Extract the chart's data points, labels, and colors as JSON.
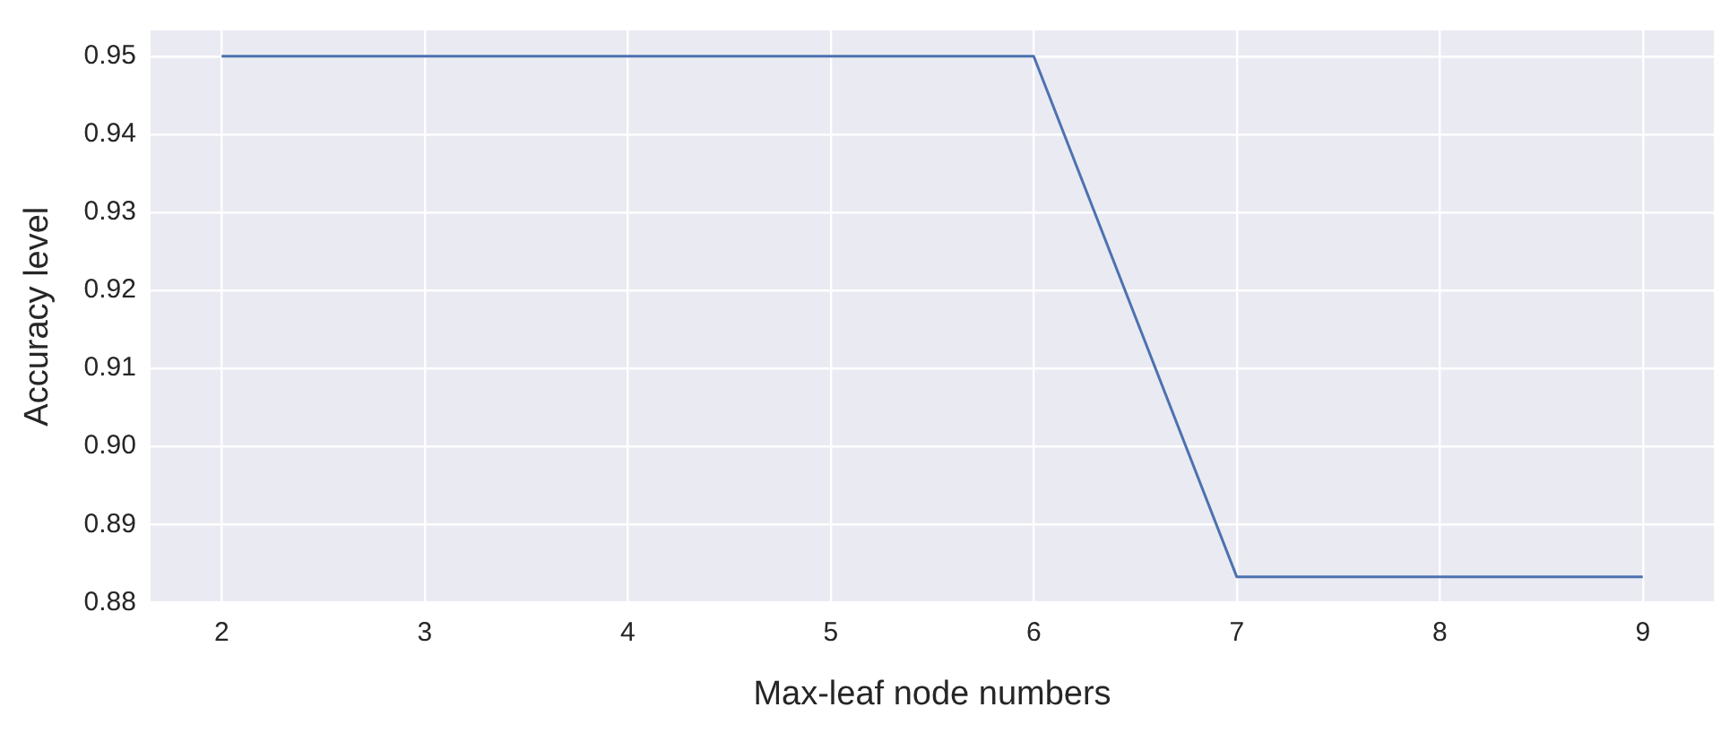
{
  "chart_data": {
    "type": "line",
    "xlabel": "Max-leaf node numbers",
    "ylabel": "Accuracy level",
    "x": [
      2,
      3,
      4,
      5,
      6,
      7,
      8,
      9
    ],
    "series": [
      {
        "color": "#4c72b0",
        "values": [
          0.95,
          0.95,
          0.95,
          0.95,
          0.95,
          0.8833,
          0.8833,
          0.8833
        ]
      }
    ],
    "xlim": [
      1.65,
      9.35
    ],
    "xticks": [
      2,
      3,
      4,
      5,
      6,
      7,
      8,
      9
    ],
    "ylim": [
      0.88,
      0.9533
    ],
    "yticks": [
      0.88,
      0.89,
      {
        "value": 0.9,
        "label": "0.90"
      },
      0.91,
      0.92,
      0.93,
      0.94,
      0.95
    ],
    "grid": true,
    "legend": false,
    "marker": "none",
    "line_style": "solid"
  }
}
